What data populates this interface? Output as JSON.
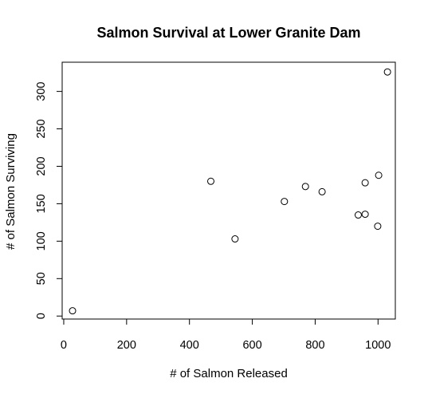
{
  "chart_data": {
    "type": "scatter",
    "title": "Salmon Survival at Lower Granite Dam",
    "xlabel": "# of Salmon Released",
    "ylabel": "# of Salmon Surviving",
    "xlim": [
      -5,
      1055
    ],
    "ylim": [
      -4,
      339
    ],
    "x_ticks": [
      0,
      200,
      400,
      600,
      800,
      1000
    ],
    "y_ticks": [
      0,
      50,
      100,
      150,
      200,
      250,
      300
    ],
    "grid": false,
    "legend": "none",
    "point_style": "open-circle",
    "points": [
      {
        "x": 28,
        "y": 7
      },
      {
        "x": 468,
        "y": 180
      },
      {
        "x": 545,
        "y": 103
      },
      {
        "x": 702,
        "y": 153
      },
      {
        "x": 769,
        "y": 173
      },
      {
        "x": 822,
        "y": 166
      },
      {
        "x": 937,
        "y": 135
      },
      {
        "x": 959,
        "y": 136
      },
      {
        "x": 959,
        "y": 178
      },
      {
        "x": 999,
        "y": 120
      },
      {
        "x": 1002,
        "y": 188
      },
      {
        "x": 1030,
        "y": 326
      }
    ]
  }
}
